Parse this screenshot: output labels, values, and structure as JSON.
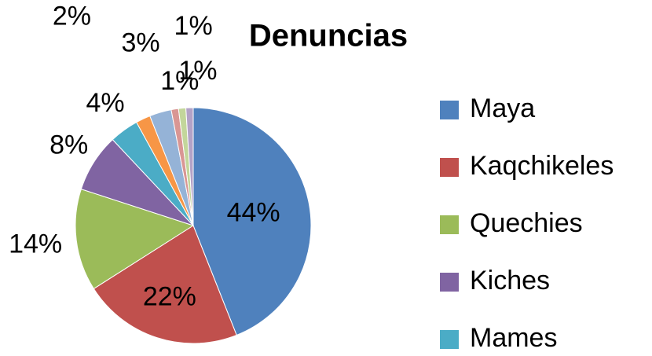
{
  "chart_data": {
    "type": "pie",
    "title": "Denuncias",
    "categories": [
      "Maya",
      "Kaqchikeles",
      "Quechies",
      "Kiches",
      "Mames",
      null,
      null,
      null,
      null,
      null
    ],
    "values": [
      44,
      22,
      14,
      8,
      4,
      2,
      3,
      1,
      1,
      1
    ],
    "value_labels": [
      "44%",
      "22%",
      "14%",
      "8%",
      "4%",
      "2%",
      "3%",
      "1%",
      "1%",
      "1%"
    ],
    "colors": [
      "#4F81BD",
      "#C0504D",
      "#9BBB59",
      "#8064A2",
      "#4BACC6",
      "#F79646",
      "#95B3D7",
      "#D99694",
      "#C3D69B",
      "#B3A2C7"
    ],
    "legend": "right"
  }
}
